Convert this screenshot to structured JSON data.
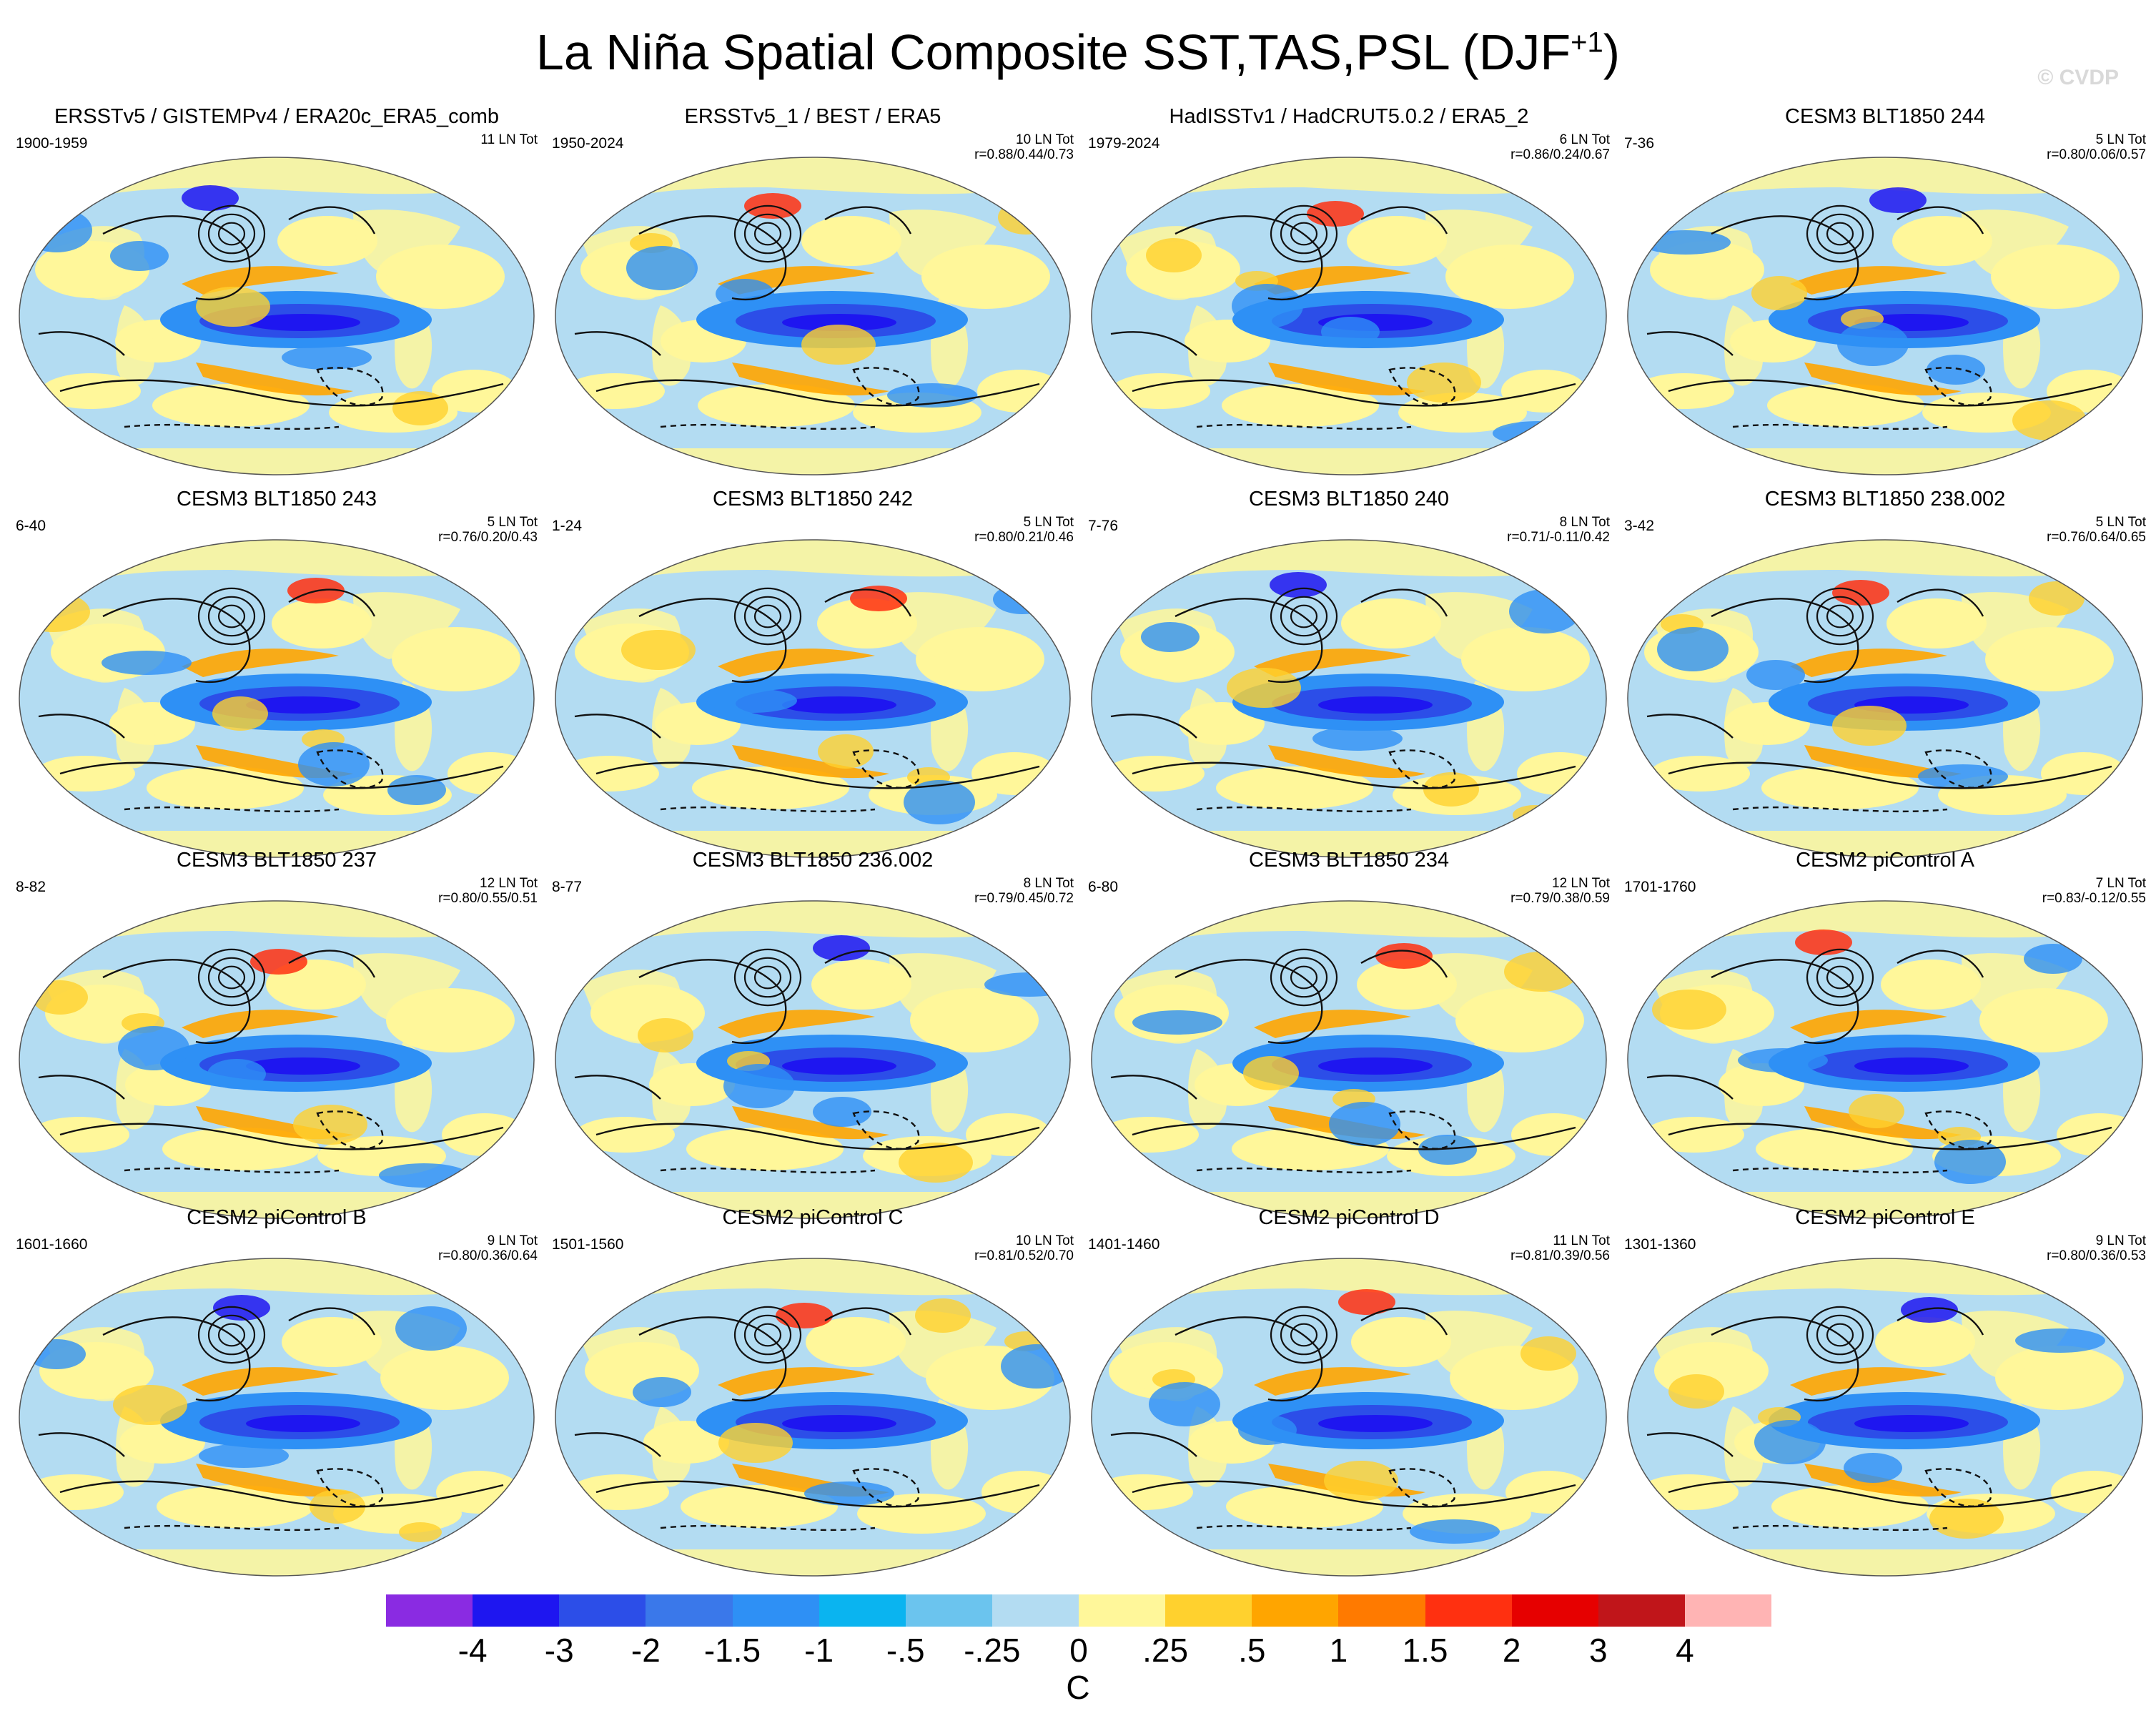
{
  "title_main": "La Niña Spatial Composite SST,TAS,PSL (DJF",
  "title_sup": "+1",
  "title_close": ")",
  "copyright": "© CVDP",
  "panels": [
    {
      "title": "ERSSTv5 / GISTEMPv4 / ERA20c_ERA5_comb",
      "years": "1900-1959",
      "count": "11 LN Tot",
      "stats": ""
    },
    {
      "title": "ERSSTv5_1 / BEST / ERA5",
      "years": "1950-2024",
      "count": "10 LN Tot",
      "stats": "r=0.88/0.44/0.73"
    },
    {
      "title": "HadISSTv1 / HadCRUT5.0.2 / ERA5_2",
      "years": "1979-2024",
      "count": "6 LN Tot",
      "stats": "r=0.86/0.24/0.67"
    },
    {
      "title": "CESM3 BLT1850 244",
      "years": "7-36",
      "count": "5 LN Tot",
      "stats": "r=0.80/0.06/0.57"
    },
    {
      "title": "CESM3 BLT1850 243",
      "years": "6-40",
      "count": "5 LN Tot",
      "stats": "r=0.76/0.20/0.43"
    },
    {
      "title": "CESM3 BLT1850 242",
      "years": "1-24",
      "count": "5 LN Tot",
      "stats": "r=0.80/0.21/0.46"
    },
    {
      "title": "CESM3 BLT1850 240",
      "years": "7-76",
      "count": "8 LN Tot",
      "stats": "r=0.71/-0.11/0.42"
    },
    {
      "title": "CESM3 BLT1850 238.002",
      "years": "3-42",
      "count": "5 LN Tot",
      "stats": "r=0.76/0.64/0.65"
    },
    {
      "title": "CESM3 BLT1850 237",
      "years": "8-82",
      "count": "12 LN Tot",
      "stats": "r=0.80/0.55/0.51"
    },
    {
      "title": "CESM3 BLT1850 236.002",
      "years": "8-77",
      "count": "8 LN Tot",
      "stats": "r=0.79/0.45/0.72"
    },
    {
      "title": "CESM3 BLT1850 234",
      "years": "6-80",
      "count": "12 LN Tot",
      "stats": "r=0.79/0.38/0.59"
    },
    {
      "title": "CESM2 piControl A",
      "years": "1701-1760",
      "count": "7 LN Tot",
      "stats": "r=0.83/-0.12/0.55"
    },
    {
      "title": "CESM2 piControl B",
      "years": "1601-1660",
      "count": "9 LN Tot",
      "stats": "r=0.80/0.36/0.64"
    },
    {
      "title": "CESM2 piControl C",
      "years": "1501-1560",
      "count": "10 LN Tot",
      "stats": "r=0.81/0.52/0.70"
    },
    {
      "title": "CESM2 piControl D",
      "years": "1401-1460",
      "count": "11 LN Tot",
      "stats": "r=0.81/0.39/0.56"
    },
    {
      "title": "CESM2 piControl E",
      "years": "1301-1360",
      "count": "9 LN Tot",
      "stats": "r=0.80/0.36/0.53"
    }
  ],
  "legend": {
    "colors": [
      "#8a2be2",
      "#1e16f0",
      "#2c4ee8",
      "#3a78ea",
      "#2e90f5",
      "#0ab4f0",
      "#6bc4ee",
      "#b3dcf2",
      "#fff79a",
      "#ffd12e",
      "#ffa500",
      "#ff7a00",
      "#ff3010",
      "#e60000",
      "#c0151a",
      "#ffb4b4"
    ],
    "ticks": [
      "-4",
      "-3",
      "-2",
      "-1.5",
      "-1",
      "-.5",
      "-.25",
      "0",
      ".25",
      ".5",
      "1",
      "1.5",
      "2",
      "3",
      "4"
    ],
    "units": "C"
  },
  "colors": {
    "ocean_base": "#b3dcf2",
    "land_base": "#fff79a",
    "cold": "#2e90f5",
    "cold_deep": "#2c4ee8",
    "cold_core": "#1e16f0",
    "warm": "#ffd12e",
    "warm_mid": "#ffa500",
    "warm_hot": "#ff3010"
  }
}
